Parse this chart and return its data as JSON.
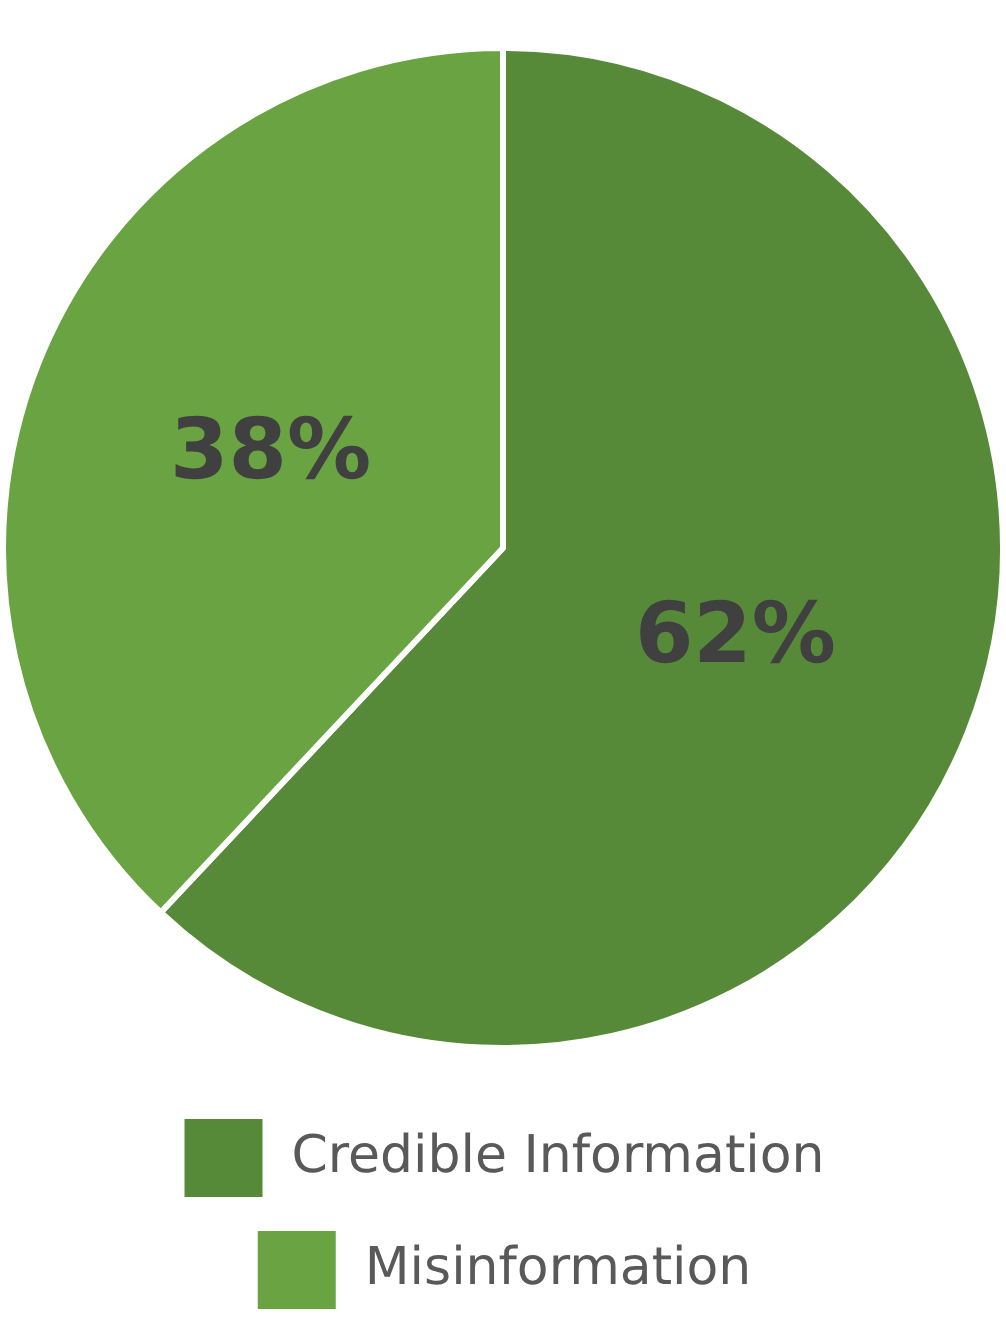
{
  "chart_data": {
    "type": "pie",
    "categories": [
      "Credible Information",
      "Misinformation"
    ],
    "values": [
      62,
      38
    ],
    "colors": [
      "#578a38",
      "#6aa342"
    ],
    "value_labels": [
      "62%",
      "38%"
    ],
    "legend": "bottom"
  }
}
